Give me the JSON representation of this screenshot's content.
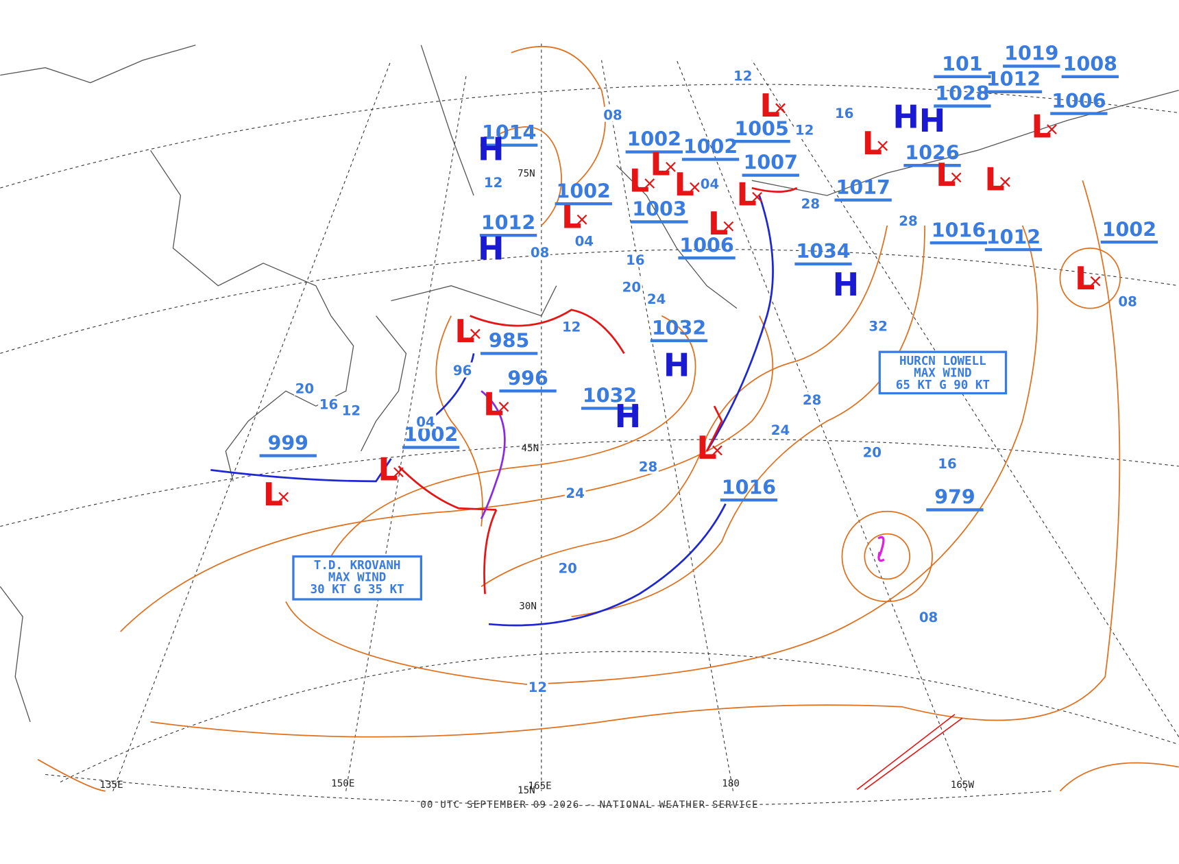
{
  "map": {
    "footer": "00 UTC SEPTEMBER 09 2026 - NATIONAL WEATHER SERVICE",
    "center_colors": {
      "H": "#1a1ad2",
      "L": "#e61414"
    },
    "label_color": "#3a7be0",
    "pressure_labels": [
      "1014",
      "1012",
      "1002",
      "1003",
      "1002",
      "1002",
      "1005",
      "1007",
      "1017",
      "1006",
      "1034",
      "1032",
      "1032",
      "985",
      "996",
      "1002",
      "999",
      "1016",
      "979",
      "1016",
      "1012",
      "1002",
      "1026",
      "1028",
      "1012",
      "1019",
      "1008",
      "1006",
      "101"
    ],
    "symbols": [
      "H",
      "H",
      "L",
      "L",
      "L",
      "L",
      "L",
      "L",
      "H",
      "H",
      "H",
      "L",
      "L",
      "L",
      "L",
      "L",
      "L",
      "L",
      "L",
      "L",
      "H",
      "H",
      "L",
      "L",
      "L"
    ],
    "isobar_labels": [
      "08",
      "12",
      "12",
      "16",
      "12",
      "08",
      "04",
      "04",
      "16",
      "20",
      "24",
      "12",
      "96",
      "20",
      "16",
      "12",
      "04",
      "28",
      "28",
      "32",
      "08",
      "28",
      "24",
      "20",
      "16",
      "28",
      "24",
      "20",
      "08",
      "12"
    ],
    "grid_labels": [
      "75N",
      "45N",
      "30N",
      "15N",
      "135E",
      "150E",
      "165E",
      "180",
      "165W"
    ],
    "storm_boxes": [
      {
        "lines": [
          "T.D. KROVANH",
          "MAX WIND",
          "30 KT G 35 KT"
        ]
      },
      {
        "lines": [
          "HURCN LOWELL",
          "MAX WIND",
          "65 KT G 90 KT"
        ]
      }
    ]
  }
}
